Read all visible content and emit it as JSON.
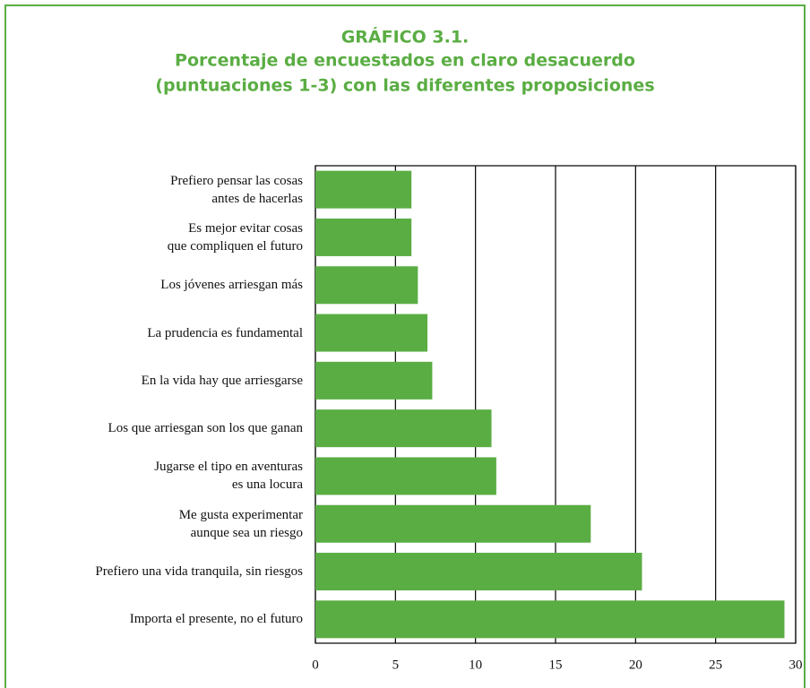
{
  "chart_data": {
    "type": "bar",
    "orientation": "horizontal",
    "title": "GRÁFICO 3.1.",
    "subtitle": [
      "Porcentaje de encuestados en claro desacuerdo",
      "(puntuaciones 1-3) con las diferentes proposiciones"
    ],
    "categories": [
      "Prefiero pensar las cosas\nantes de hacerlas",
      "Es mejor evitar cosas\nque compliquen el futuro",
      "Los jóvenes arriesgan más",
      "La prudencia es fundamental",
      "En la vida hay que arriesgarse",
      "Los que arriesgan son los que ganan",
      "Jugarse el tipo en aventuras\nes una locura",
      "Me gusta experimentar\naunque sea un riesgo",
      "Prefiero una vida tranquila, sin riesgos",
      "Importa el presente, no el futuro"
    ],
    "values": [
      6.0,
      6.0,
      6.4,
      7.0,
      7.3,
      11.0,
      11.3,
      17.2,
      20.4,
      29.3
    ],
    "color": "#5aad43",
    "xlim": [
      0,
      30
    ],
    "xticks": [
      0,
      5,
      10,
      15,
      20,
      25,
      30
    ],
    "grid": true
  }
}
